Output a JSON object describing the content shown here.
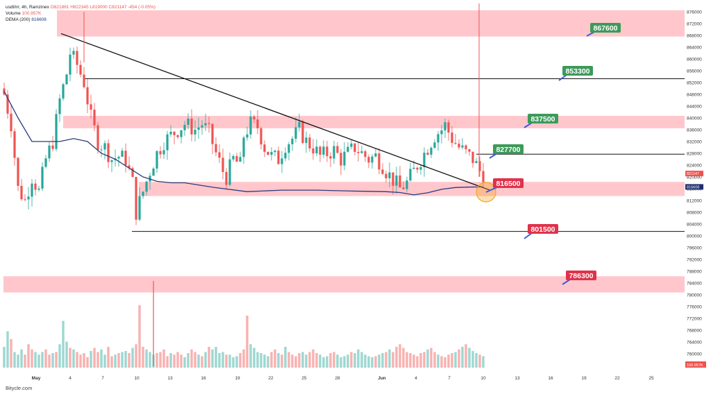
{
  "legend": {
    "title": "usdt/irr, 4h, Ramzinex",
    "ohlc": "O821881 H822345 L819000 C821147 -454 (-0.05%)",
    "volume_label": "Volume",
    "volume_value": "100.957K",
    "ma_label": "DEMA (200)",
    "ma_value": "816608"
  },
  "footer": {
    "credit": "Bitycle.com"
  },
  "colors": {
    "up": "#26a69a",
    "down": "#ef5350",
    "zone": "#ffc1c7",
    "dema": "#2b3a7c",
    "green_tag": "#3d9a5a",
    "red_tag": "#e0324b",
    "highlight": "#f5a623"
  },
  "chart_data": {
    "type": "candlestick",
    "symbol": "usdt/irr",
    "timeframe": "4h",
    "x_ticks": [
      "May",
      "4",
      "7",
      "10",
      "13",
      "16",
      "19",
      "22",
      "25",
      "28",
      "Jun",
      "4",
      "7",
      "10",
      "13",
      "16",
      "19",
      "22",
      "25"
    ],
    "y_ticks": [
      "876000",
      "872000",
      "868000",
      "864000",
      "860000",
      "856000",
      "852000",
      "848000",
      "844000",
      "840000",
      "836000",
      "832000",
      "828000",
      "824000",
      "820000",
      "816000",
      "812000",
      "808000",
      "804000",
      "800000",
      "796000",
      "792000",
      "788000",
      "784000",
      "780000",
      "776000",
      "772000",
      "768000",
      "764000",
      "760000"
    ],
    "ylim": [
      760000,
      877000
    ],
    "last_price": "821147",
    "dema_value": "816608",
    "volume_value": "100.957K",
    "resistance_levels": [
      "867600",
      "853300",
      "837500",
      "827700"
    ],
    "support_levels": [
      "816500",
      "801500",
      "786300"
    ],
    "zones": [
      {
        "from": 867600,
        "to": 876500
      },
      {
        "from": 836500,
        "to": 840700
      },
      {
        "from": 813500,
        "to": 818300
      },
      {
        "from": 780800,
        "to": 786300
      }
    ],
    "horizontal_lines": [
      853300,
      827700,
      801500
    ],
    "trendline": {
      "from": "May 3",
      "from_price": 868600,
      "to": "Jun 10",
      "to_price": 816500
    },
    "price_path": [
      [
        0,
        848000
      ],
      [
        2,
        838000
      ],
      [
        4,
        816000
      ],
      [
        6,
        812000
      ],
      [
        8,
        820000
      ],
      [
        10,
        815000
      ],
      [
        12,
        826000
      ],
      [
        14,
        832000
      ],
      [
        16,
        846000
      ],
      [
        18,
        855000
      ],
      [
        19,
        862000
      ],
      [
        21,
        858000
      ],
      [
        23,
        852000
      ],
      [
        25,
        840000
      ],
      [
        27,
        832000
      ],
      [
        29,
        830000
      ],
      [
        31,
        826000
      ],
      [
        33,
        827000
      ],
      [
        35,
        826000
      ],
      [
        37,
        818000
      ],
      [
        38,
        808000
      ],
      [
        40,
        815000
      ],
      [
        42,
        822000
      ],
      [
        44,
        828000
      ],
      [
        46,
        832000
      ],
      [
        48,
        834000
      ],
      [
        50,
        836000
      ],
      [
        52,
        838000
      ],
      [
        55,
        836000
      ],
      [
        57,
        838000
      ],
      [
        59,
        835000
      ],
      [
        61,
        828000
      ],
      [
        63,
        822000
      ],
      [
        64,
        820000
      ],
      [
        66,
        826000
      ],
      [
        68,
        824000
      ],
      [
        69,
        834000
      ],
      [
        71,
        838000
      ],
      [
        73,
        837000
      ],
      [
        75,
        830000
      ],
      [
        77,
        827000
      ],
      [
        79,
        826000
      ],
      [
        81,
        831000
      ],
      [
        83,
        833000
      ],
      [
        85,
        836000
      ],
      [
        87,
        832000
      ],
      [
        89,
        830000
      ],
      [
        91,
        827000
      ],
      [
        93,
        828000
      ],
      [
        95,
        829000
      ],
      [
        97,
        826000
      ],
      [
        99,
        828000
      ],
      [
        101,
        830000
      ],
      [
        103,
        828000
      ],
      [
        105,
        826000
      ],
      [
        107,
        827000
      ],
      [
        109,
        824000
      ],
      [
        110,
        822000
      ],
      [
        112,
        819000
      ],
      [
        114,
        816000
      ],
      [
        116,
        818000
      ],
      [
        118,
        822000
      ],
      [
        120,
        826000
      ],
      [
        122,
        830000
      ],
      [
        124,
        834000
      ],
      [
        126,
        836000
      ],
      [
        127,
        837500
      ],
      [
        129,
        833000
      ],
      [
        131,
        830000
      ],
      [
        133,
        828000
      ],
      [
        134,
        827000
      ],
      [
        135,
        826000
      ],
      [
        136,
        824000
      ],
      [
        137,
        822000
      ],
      [
        138,
        821147
      ]
    ],
    "dema_path": [
      [
        0,
        849000
      ],
      [
        4,
        840000
      ],
      [
        8,
        832000
      ],
      [
        12,
        832000
      ],
      [
        16,
        832000
      ],
      [
        20,
        833000
      ],
      [
        24,
        832000
      ],
      [
        28,
        828000
      ],
      [
        32,
        826000
      ],
      [
        36,
        823000
      ],
      [
        40,
        820000
      ],
      [
        44,
        818500
      ],
      [
        48,
        818000
      ],
      [
        52,
        818000
      ],
      [
        60,
        816500
      ],
      [
        70,
        815000
      ],
      [
        80,
        815500
      ],
      [
        90,
        815500
      ],
      [
        100,
        815200
      ],
      [
        110,
        815000
      ],
      [
        114,
        814700
      ],
      [
        118,
        813900
      ],
      [
        122,
        814600
      ],
      [
        126,
        815800
      ],
      [
        130,
        816400
      ],
      [
        134,
        816550
      ],
      [
        138,
        816608
      ]
    ],
    "volume": [
      40,
      70,
      55,
      30,
      25,
      35,
      25,
      45,
      35,
      30,
      25,
      30,
      35,
      25,
      28,
      30,
      45,
      90,
      50,
      38,
      35,
      30,
      25,
      28,
      20,
      32,
      38,
      30,
      35,
      25,
      40,
      22,
      25,
      28,
      30,
      32,
      28,
      38,
      45,
      120,
      40,
      35,
      30,
      25,
      28,
      30,
      35,
      22,
      28,
      25,
      30,
      25,
      20,
      28,
      35,
      30,
      25,
      22,
      30,
      40,
      35,
      40,
      28,
      30,
      25,
      25,
      20,
      22,
      28,
      35,
      100,
      45,
      38,
      30,
      28,
      25,
      22,
      30,
      35,
      28,
      25,
      40,
      30,
      25,
      22,
      28,
      30,
      25,
      30,
      35,
      28,
      25,
      20,
      22,
      28,
      30,
      25,
      20,
      22,
      25,
      30,
      28,
      35,
      30,
      25,
      22,
      20,
      22,
      25,
      28,
      30,
      35,
      30,
      40,
      45,
      38,
      30,
      28,
      25,
      22,
      28,
      30,
      35,
      38,
      30,
      25,
      22,
      20,
      25,
      28,
      30,
      35,
      40,
      45,
      38,
      32,
      28,
      25,
      22
    ]
  }
}
